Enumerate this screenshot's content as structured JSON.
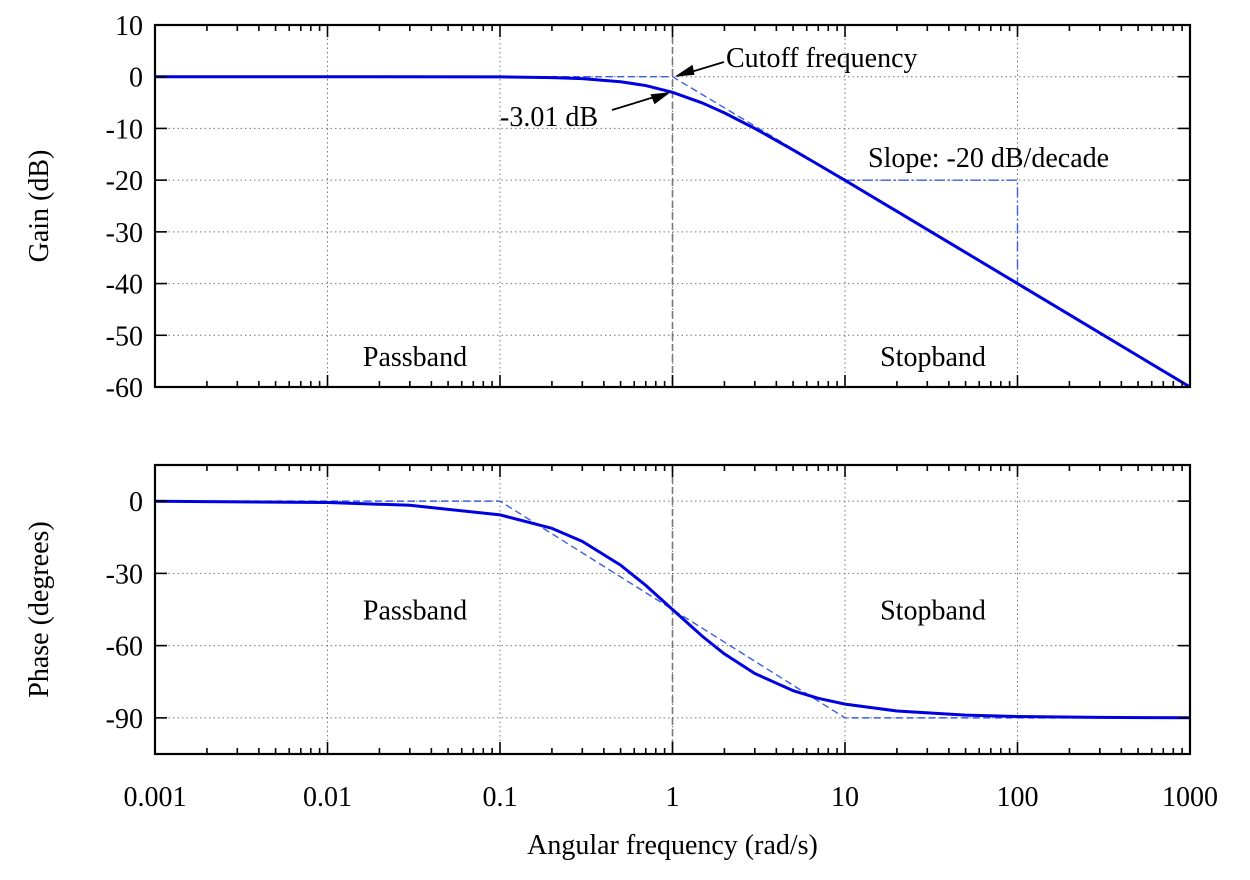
{
  "chart_data": [
    {
      "type": "line",
      "panel": "magnitude",
      "ylabel": "Gain (dB)",
      "xscale": "log",
      "xlim": [
        0.001,
        1000
      ],
      "ylim": [
        -60,
        10
      ],
      "grid": true,
      "xticks": [
        0.001,
        0.01,
        0.1,
        1,
        10,
        100,
        1000
      ],
      "yticks": [
        10,
        0,
        -10,
        -20,
        -30,
        -40,
        -50,
        -60
      ],
      "ytick_labels": [
        "10",
        "0",
        "-10",
        "-20",
        "-30",
        "-40",
        "-50",
        "-60"
      ],
      "series": [
        {
          "style": "solid",
          "color": "#0000e0",
          "x": [
            0.001,
            0.01,
            0.1,
            0.2,
            0.3,
            0.5,
            0.7,
            1,
            1.5,
            2,
            3,
            5,
            7,
            10,
            20,
            30,
            50,
            100,
            200,
            300,
            500,
            1000
          ],
          "y": [
            0,
            0,
            -0.04,
            -0.17,
            -0.37,
            -0.97,
            -1.71,
            -3.01,
            -5.12,
            -6.99,
            -10.0,
            -14.15,
            -17.0,
            -20.04,
            -26.03,
            -29.55,
            -33.98,
            -40.0,
            -46.02,
            -49.54,
            -53.98,
            -60.0
          ]
        },
        {
          "style": "dashed",
          "color": "#3a5fe0",
          "x": [
            0.001,
            1,
            1000
          ],
          "y": [
            0,
            0,
            -60
          ]
        },
        {
          "style": "dash-dot",
          "color": "#3a5fe0",
          "x": [
            10,
            100,
            100
          ],
          "y": [
            -20,
            -20,
            -40
          ]
        }
      ],
      "vline": {
        "x": 1,
        "style": "dashed",
        "color": "#777777"
      },
      "annotations": [
        {
          "text": "Cutoff frequency",
          "x": 1,
          "y": 0,
          "arrow": true
        },
        {
          "text": "-3.01 dB",
          "x": 1,
          "y": -3.01,
          "arrow": true
        },
        {
          "text": "Slope: -20 dB/decade",
          "x": 22,
          "y": -16
        },
        {
          "text": "Passband",
          "x": 0.015,
          "y": -54
        },
        {
          "text": "Stopband",
          "x": 14,
          "y": -54
        }
      ]
    },
    {
      "type": "line",
      "panel": "phase",
      "xlabel": "Angular frequency (rad/s)",
      "ylabel": "Phase (degrees)",
      "xscale": "log",
      "xlim": [
        0.001,
        1000
      ],
      "ylim": [
        -105,
        15
      ],
      "grid": true,
      "xticks": [
        0.001,
        0.01,
        0.1,
        1,
        10,
        100,
        1000
      ],
      "xtick_labels": [
        "0.001",
        "0.01",
        "0.1",
        "1",
        "10",
        "100",
        "1000"
      ],
      "yticks": [
        0,
        -30,
        -60,
        -90
      ],
      "ytick_labels": [
        "0",
        "-30",
        "-60",
        "-90"
      ],
      "series": [
        {
          "style": "solid",
          "color": "#0000e0",
          "x": [
            0.001,
            0.01,
            0.03,
            0.1,
            0.2,
            0.3,
            0.5,
            0.7,
            1,
            1.5,
            2,
            3,
            5,
            7,
            10,
            20,
            50,
            100,
            300,
            1000
          ],
          "y": [
            -0.06,
            -0.57,
            -1.72,
            -5.71,
            -11.31,
            -16.7,
            -26.57,
            -34.99,
            -45.0,
            -56.31,
            -63.43,
            -71.57,
            -78.69,
            -81.87,
            -84.29,
            -87.14,
            -88.85,
            -89.43,
            -89.81,
            -89.94
          ]
        },
        {
          "style": "dashed",
          "color": "#3a5fe0",
          "x": [
            0.001,
            0.1,
            10,
            1000
          ],
          "y": [
            0,
            0,
            -90,
            -90
          ]
        }
      ],
      "vline": {
        "x": 1,
        "style": "dashed",
        "color": "#777777"
      },
      "annotations": [
        {
          "text": "Passband",
          "x": 0.015,
          "y": -45
        },
        {
          "text": "Stopband",
          "x": 14,
          "y": -45
        }
      ]
    }
  ]
}
